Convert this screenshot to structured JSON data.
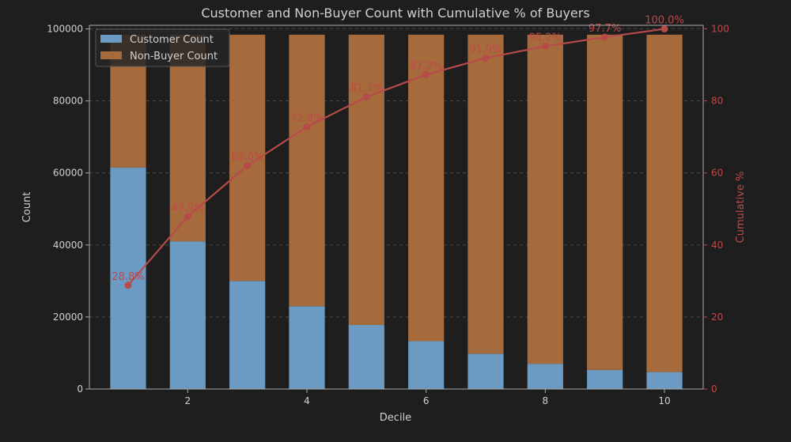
{
  "chart_data": {
    "type": "bar",
    "title": "Customer and Non-Buyer Count with Cumulative % of Buyers",
    "xlabel": "Decile",
    "ylabel": "Count",
    "ylabel_right": "Cumulative %",
    "x": [
      1,
      2,
      3,
      4,
      5,
      6,
      7,
      8,
      9,
      10
    ],
    "xticks": [
      "2",
      "4",
      "6",
      "8",
      "10"
    ],
    "xlim": [
      0.35,
      10.65
    ],
    "ylim": [
      0,
      101000
    ],
    "yticks": [
      "0",
      "20000",
      "40000",
      "60000",
      "80000",
      "100000"
    ],
    "ylim_right": [
      0,
      101
    ],
    "yticks_right": [
      "0",
      "20",
      "40",
      "60",
      "80",
      "100"
    ],
    "stacked": true,
    "grid": "horizontal dashed",
    "legend_position": "top-left",
    "series": [
      {
        "name": "Customer Count",
        "kind": "bar",
        "color": "#6b9bc3",
        "values": [
          61500,
          41000,
          30000,
          23000,
          17800,
          13300,
          9800,
          7000,
          5300,
          4700
        ]
      },
      {
        "name": "Non-Buyer Count",
        "kind": "bar",
        "color": "#a56b3c",
        "values": [
          36900,
          57400,
          68400,
          75400,
          80600,
          85100,
          88600,
          91400,
          93100,
          93700
        ]
      },
      {
        "name": "Cumulative % of Buyers",
        "kind": "line",
        "axis": "right",
        "color": "#b84a4a",
        "values": [
          28.8,
          47.9,
          62.0,
          72.8,
          81.1,
          87.3,
          91.9,
          95.2,
          97.7,
          100.0
        ],
        "labels": [
          "28.8%",
          "47.9%",
          "62.0%",
          "72.8%",
          "81.1%",
          "87.3%",
          "91.9%",
          "95.2%",
          "97.7%",
          "100.0%"
        ]
      }
    ]
  }
}
